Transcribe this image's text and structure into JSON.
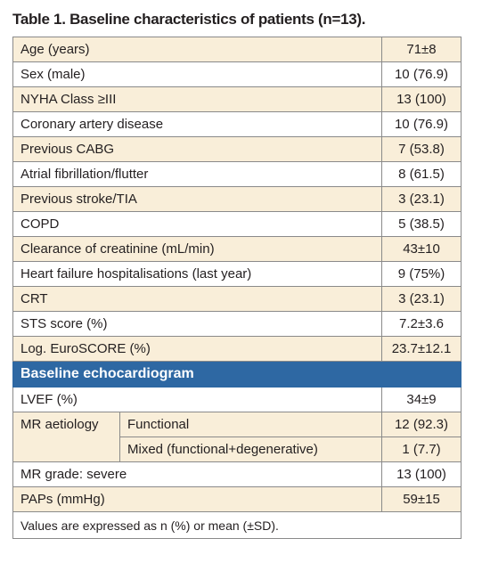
{
  "title": "Table 1. Baseline characteristics of patients (n=13).",
  "rows": [
    {
      "label": "Age (years)",
      "value": "71±8"
    },
    {
      "label": "Sex (male)",
      "value": "10 (76.9)"
    },
    {
      "label": "NYHA Class ≥III",
      "value": "13 (100)"
    },
    {
      "label": "Coronary artery disease",
      "value": "10 (76.9)"
    },
    {
      "label": "Previous CABG",
      "value": "7 (53.8)"
    },
    {
      "label": "Atrial fibrillation/flutter",
      "value": "8 (61.5)"
    },
    {
      "label": "Previous stroke/TIA",
      "value": "3 (23.1)"
    },
    {
      "label": "COPD",
      "value": "5 (38.5)"
    },
    {
      "label": "Clearance of creatinine (mL/min)",
      "value": "43±10"
    },
    {
      "label": "Heart failure hospitalisations (last year)",
      "value": "9 (75%)"
    },
    {
      "label": "CRT",
      "value": "3 (23.1)"
    },
    {
      "label": "STS score (%)",
      "value": "7.2±3.6"
    },
    {
      "label": "Log. EuroSCORE (%)",
      "value": "23.7±12.1"
    }
  ],
  "echo": {
    "heading": "Baseline echocardiogram",
    "lvef": {
      "label": "LVEF (%)",
      "value": "34±9"
    },
    "mr_aetiology": {
      "label": "MR aetiology",
      "functional": {
        "label": "Functional",
        "value": "12 (92.3)"
      },
      "mixed": {
        "label": "Mixed (functional+degenerative)",
        "value": "1 (7.7)"
      }
    },
    "mr_grade": {
      "label": "MR grade: severe",
      "value": "13 (100)"
    },
    "paps": {
      "label": "PAPs (mmHg)",
      "value": "59±15"
    }
  },
  "footnote": "Values are expressed as n (%) or mean (±SD).",
  "colors": {
    "shade": "#f9eed9",
    "section": "#2e68a3",
    "border": "#8a8a8a"
  }
}
